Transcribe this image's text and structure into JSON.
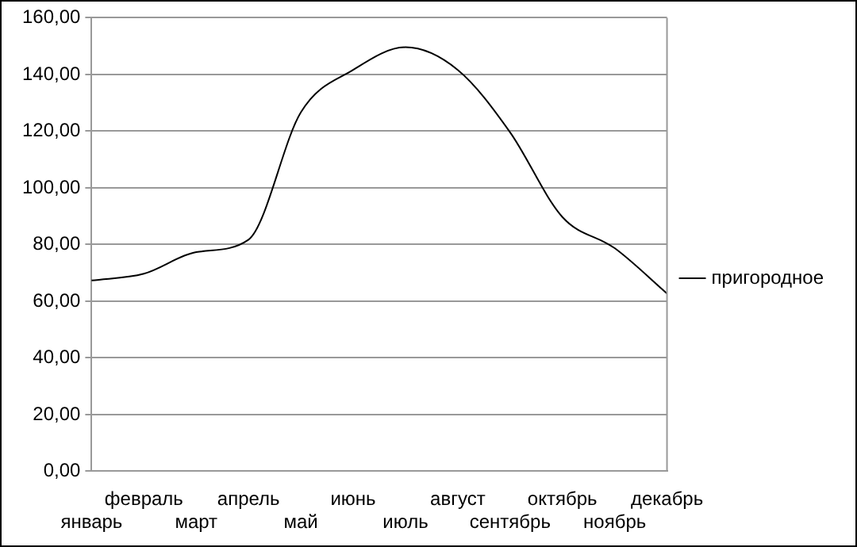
{
  "chart_data": {
    "type": "line",
    "categories": [
      "январь",
      "февраль",
      "март",
      "апрель",
      "май",
      "июнь",
      "июль",
      "август",
      "сентябрь",
      "октябрь",
      "ноябрь",
      "декабрь"
    ],
    "series": [
      {
        "name": "пригородное",
        "color": "#000000",
        "values": [
          67.3,
          69.7,
          77.3,
          81.7,
          126.6,
          141.6,
          149.6,
          141.6,
          119.6,
          89.7,
          78.7,
          62.7
        ]
      }
    ],
    "ylim": [
      0,
      160
    ],
    "yticks": [
      {
        "value": 0,
        "label": "0,00"
      },
      {
        "value": 20,
        "label": "20,00"
      },
      {
        "value": 40,
        "label": "40,00"
      },
      {
        "value": 60,
        "label": "60,00"
      },
      {
        "value": 80,
        "label": "80,00"
      },
      {
        "value": 100,
        "label": "100,00"
      },
      {
        "value": 120,
        "label": "120,00"
      },
      {
        "value": 140,
        "label": "140,00"
      },
      {
        "value": 160,
        "label": "160,00"
      }
    ],
    "grid": "y",
    "legend": "right",
    "marker": "none",
    "line_style": "solid"
  }
}
